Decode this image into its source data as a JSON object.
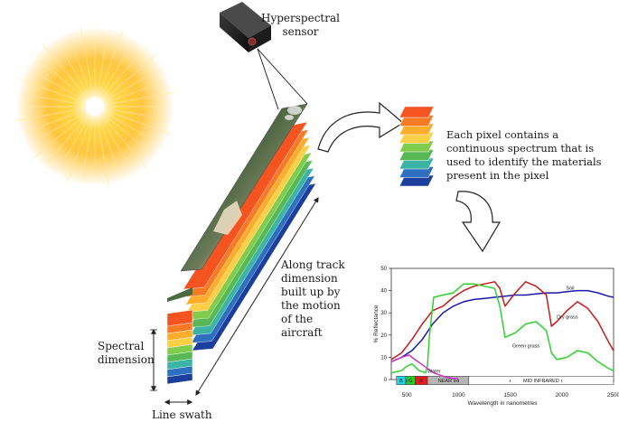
{
  "labels": {
    "sensor": "Hyperspectral sensor",
    "pixel_note": "Each pixel contains a continuous spectrum that is used to identify the materials present in the pixel",
    "along_track": "Along track dimension built up by the motion of the aircraft",
    "spectral_dimension": "Spectral dimension",
    "line_swath": "Line swath"
  },
  "colors": {
    "sun_core": "#fffbe6",
    "sun_glow": "#ffb400",
    "band_colors": [
      "#f5531f",
      "#f97a24",
      "#fbad2b",
      "#fbcf46",
      "#7fcc4e",
      "#58b856",
      "#3bb3a5",
      "#2f6fbf",
      "#1c3f9d"
    ],
    "soil": "#1a1aa8",
    "dry_grass": "#c41a1a",
    "green_grass": "#2fd12f",
    "water": "#cc33cc"
  },
  "chart_data": {
    "type": "line",
    "xlabel": "Wavelength in nanometres",
    "ylabel": "% Reflectance",
    "xlim": [
      350,
      2500
    ],
    "ylim": [
      0,
      50
    ],
    "x_ticks": [
      500,
      1000,
      1500,
      2000,
      2500
    ],
    "y_ticks": [
      0,
      10,
      20,
      30,
      40,
      50
    ],
    "grid": false,
    "regions": [
      {
        "label": "B",
        "from": 400,
        "to": 490,
        "color": "#19d3e6"
      },
      {
        "label": "G",
        "from": 490,
        "to": 580,
        "color": "#27cc27"
      },
      {
        "label": "R",
        "from": 580,
        "to": 700,
        "color": "#e02020"
      },
      {
        "label": "NEAR IR",
        "from": 700,
        "to": 1100,
        "color": "#b5b5b5"
      },
      {
        "label": "MID INFRARED",
        "from": 1100,
        "to": 2500,
        "color": "#ffffff"
      }
    ],
    "series": [
      {
        "name": "Soil",
        "color": "#1a1aa8",
        "x": [
          350,
          450,
          550,
          650,
          750,
          850,
          950,
          1050,
          1150,
          1250,
          1350,
          1450,
          1550,
          1650,
          1750,
          1850,
          1950,
          2050,
          2150,
          2250,
          2350,
          2450,
          2500
        ],
        "y": [
          8,
          10,
          13,
          18,
          25,
          30,
          33,
          35,
          36,
          36.5,
          37,
          37.5,
          38,
          38,
          38.5,
          39,
          39,
          39.5,
          40,
          40,
          39,
          37.5,
          37
        ]
      },
      {
        "name": "Dry grass",
        "color": "#c41a1a",
        "x": [
          350,
          450,
          550,
          650,
          750,
          850,
          950,
          1050,
          1150,
          1250,
          1350,
          1400,
          1450,
          1550,
          1650,
          1750,
          1850,
          1900,
          1950,
          2050,
          2150,
          2250,
          2350,
          2450,
          2500
        ],
        "y": [
          9,
          12,
          18,
          25,
          31,
          33,
          37,
          40,
          42,
          43,
          44,
          41,
          33,
          39,
          44,
          42,
          38,
          24,
          26,
          31,
          35,
          32,
          26,
          17,
          13
        ]
      },
      {
        "name": "Green grass",
        "color": "#2fd12f",
        "x": [
          350,
          450,
          500,
          550,
          620,
          680,
          700,
          720,
          760,
          850,
          950,
          1050,
          1150,
          1250,
          1350,
          1400,
          1450,
          1550,
          1650,
          1750,
          1850,
          1900,
          1950,
          2050,
          2150,
          2250,
          2350,
          2450,
          2500
        ],
        "y": [
          3,
          4,
          6,
          7,
          4,
          3,
          6,
          20,
          37,
          38,
          39,
          43,
          43,
          42,
          41,
          33,
          19,
          21,
          25,
          26,
          22,
          12,
          9,
          10,
          13,
          12,
          8,
          5,
          4
        ]
      },
      {
        "name": "Water",
        "color": "#cc33cc",
        "x": [
          350,
          450,
          520,
          580,
          640,
          700,
          760,
          820,
          880,
          950,
          1000
        ],
        "y": [
          8,
          10,
          11,
          9,
          7,
          5,
          3,
          2,
          1,
          0.5,
          0.3
        ]
      }
    ]
  }
}
